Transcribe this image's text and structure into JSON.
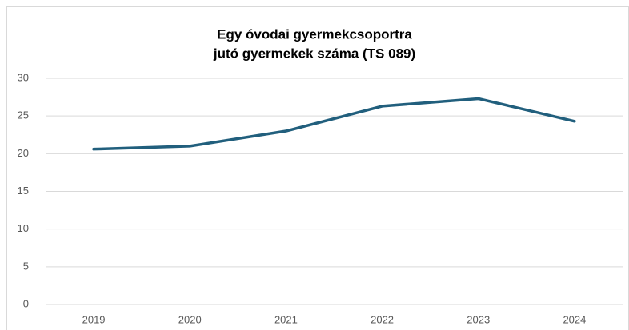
{
  "chart_data": {
    "type": "line",
    "title": [
      "Egy óvodai gyermekcsoportra",
      "jutó gyermekek száma (TS 089)"
    ],
    "categories": [
      "2019",
      "2020",
      "2021",
      "2022",
      "2023",
      "2024"
    ],
    "series": [
      {
        "name": "gyermekek száma",
        "color": "#215f7d",
        "values": [
          20.6,
          21.0,
          23.0,
          26.3,
          27.3,
          24.3
        ]
      }
    ],
    "ylim": [
      0,
      30
    ],
    "yticks": [
      0,
      5,
      10,
      15,
      20,
      25,
      30
    ],
    "grid": true
  }
}
